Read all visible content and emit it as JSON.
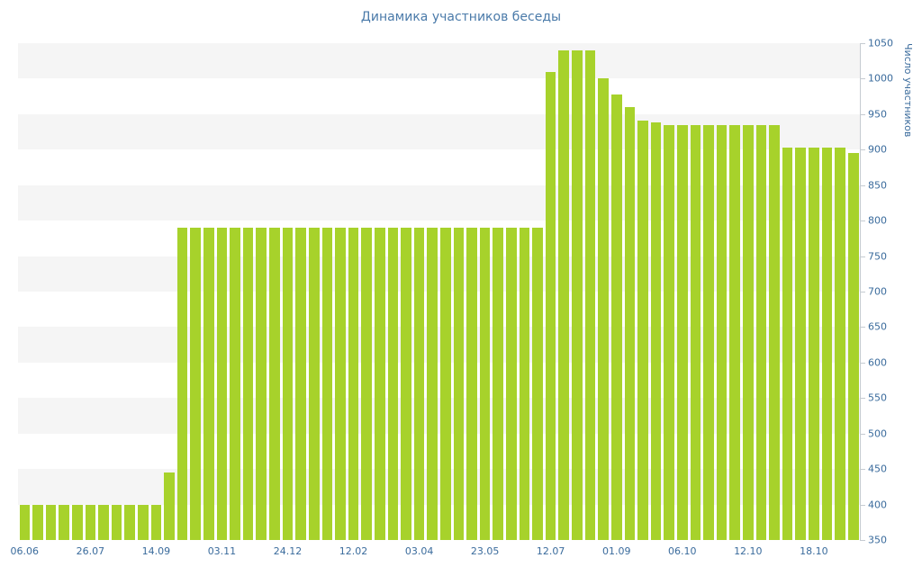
{
  "chart_data": {
    "type": "bar",
    "title": "Динамика участников беседы",
    "xlabel": "",
    "ylabel": "Число участников",
    "ylim": [
      350,
      1050
    ],
    "ytick_step": 50,
    "yticks": [
      350,
      400,
      450,
      500,
      550,
      600,
      650,
      700,
      750,
      800,
      850,
      900,
      950,
      1000,
      1050
    ],
    "yaxis_position": "right",
    "grid": "alternating-horizontal-bands",
    "legend": "none",
    "x_tick_labels": [
      "06.06",
      "26.07",
      "14.09",
      "03.11",
      "24.12",
      "12.02",
      "03.04",
      "23.05",
      "12.07",
      "01.09",
      "06.10",
      "12.10",
      "18.10"
    ],
    "x_tick_every": 5,
    "values": [
      400,
      400,
      400,
      400,
      400,
      400,
      400,
      400,
      400,
      400,
      400,
      445,
      790,
      790,
      790,
      790,
      790,
      790,
      790,
      790,
      790,
      790,
      790,
      790,
      790,
      790,
      790,
      790,
      790,
      790,
      790,
      790,
      790,
      790,
      790,
      790,
      790,
      790,
      790,
      790,
      1010,
      1040,
      1040,
      1040,
      1000,
      978,
      960,
      941,
      938,
      935,
      935,
      935,
      935,
      935,
      935,
      935,
      935,
      935,
      903,
      903,
      903,
      903,
      903,
      895
    ],
    "colors": {
      "bar": "#a7d22b",
      "title_text": "#4a7aa9",
      "axis_text": "#3a6b9c",
      "band": "#f5f5f5",
      "axis_line": "#c5cbd1"
    }
  }
}
